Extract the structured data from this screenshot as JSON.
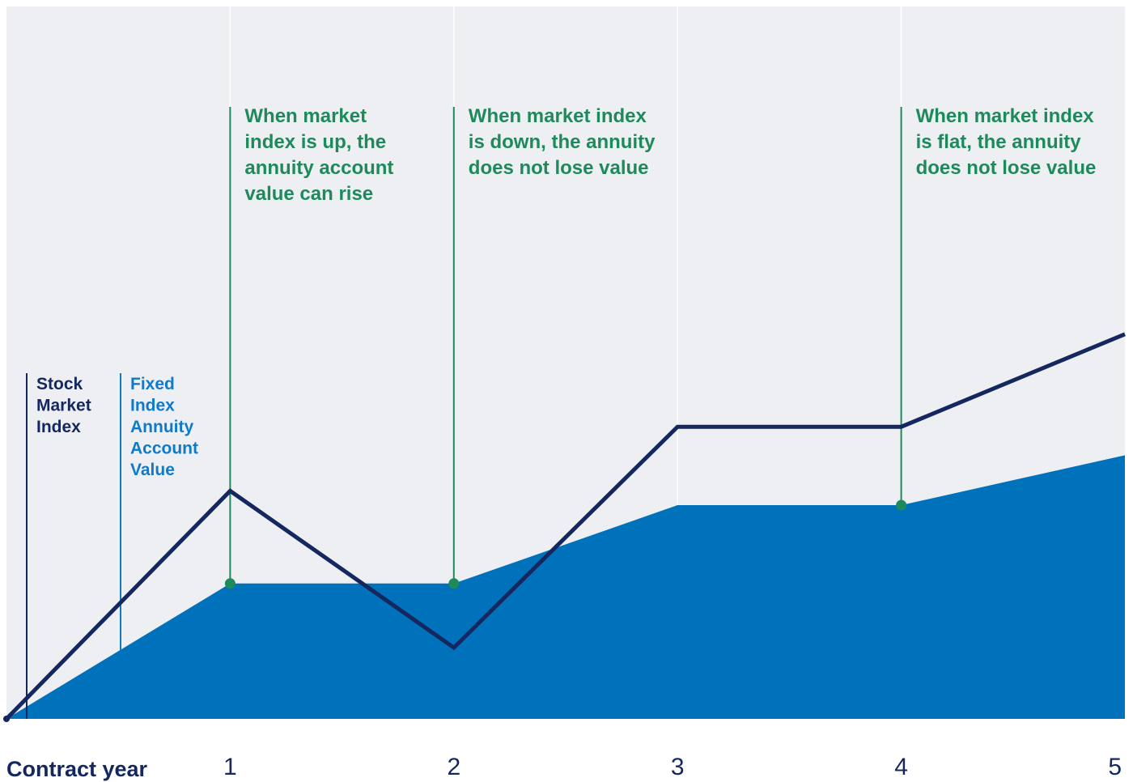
{
  "chart_data": {
    "type": "area",
    "title": "",
    "xlabel": "Contract year",
    "ylabel": "",
    "xlim": [
      0,
      5
    ],
    "ylim": [
      0,
      100
    ],
    "grid": true,
    "x_ticks": [
      "1",
      "2",
      "3",
      "4",
      "5"
    ],
    "series": [
      {
        "name": "Stock Market Index",
        "kind": "line",
        "x": [
          0,
          1,
          2,
          3,
          4,
          5
        ],
        "values": [
          0,
          32,
          10,
          41,
          41,
          54
        ]
      },
      {
        "name": "Fixed Index Annuity Account Value",
        "kind": "area",
        "x": [
          0,
          1,
          2,
          3,
          4,
          5
        ],
        "values": [
          0,
          19,
          19,
          30,
          30,
          37
        ]
      }
    ],
    "legend": [
      {
        "lines": [
          "Stock",
          "Market",
          "Index"
        ],
        "color": "#14285f"
      },
      {
        "lines": [
          "Fixed",
          "Index",
          "Annuity",
          "Account",
          "Value"
        ],
        "color": "#0f7ac8"
      }
    ],
    "annotations": [
      {
        "x": 1,
        "lines": [
          "When market",
          "index is up, the",
          "annuity account",
          "value can rise"
        ]
      },
      {
        "x": 2,
        "lines": [
          "When market index",
          "is down, the annuity",
          "does not lose value"
        ]
      },
      {
        "x": 4,
        "lines": [
          "When market index",
          "is flat, the annuity",
          "does not lose value"
        ]
      }
    ],
    "colors": {
      "background": "#eeeff3",
      "line": "#14285f",
      "area": "#0072bc",
      "annotation": "#1e8a5c",
      "grid": "#ffffff",
      "legend_fixed": "#0f7ac8"
    }
  }
}
